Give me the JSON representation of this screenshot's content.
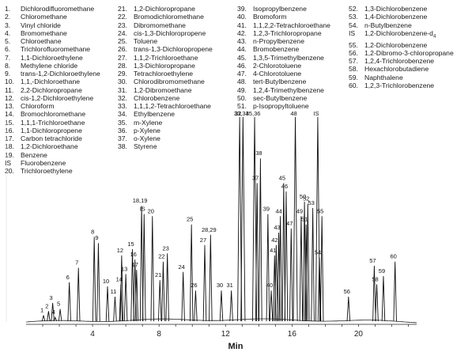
{
  "legend": {
    "columns": [
      [
        {
          "num": "1.",
          "name": "Dichlorodifluoromethane"
        },
        {
          "num": "2.",
          "name": "Chloromethane"
        },
        {
          "num": "3.",
          "name": "Vinyl chloride"
        },
        {
          "num": "4.",
          "name": "Bromomethane"
        },
        {
          "num": "5.",
          "name": "Chloroethane"
        },
        {
          "num": "6.",
          "name": "Trichlorofluoromethane"
        },
        {
          "num": "7.",
          "name": "1,1-Dichloroethylene"
        },
        {
          "num": "8.",
          "name": "Methylene chloride"
        },
        {
          "num": "9.",
          "name": "trans-1,2-Dichloroethylene"
        },
        {
          "num": "10.",
          "name": "1,1,-Dichloroethane"
        },
        {
          "num": "11.",
          "name": "2,2-Dichloropropane"
        },
        {
          "num": "12.",
          "name": "cis-1,2-Dichloroethylene"
        },
        {
          "num": "13.",
          "name": "Chloroform"
        },
        {
          "num": "14.",
          "name": "Bromochloromethane"
        },
        {
          "num": "15.",
          "name": "1,1,1-Trichloroethane"
        },
        {
          "num": "16.",
          "name": "1,1-Dichloropropene"
        },
        {
          "num": "17.",
          "name": "Carbon tetrachloride"
        },
        {
          "num": "18.",
          "name": "1,2-Dichloroethane"
        },
        {
          "num": "19.",
          "name": "Benzene"
        },
        {
          "num": "IS",
          "name": "Fluorobenzene"
        },
        {
          "num": "20.",
          "name": "Trichloroethylene"
        }
      ],
      [
        {
          "num": "21.",
          "name": "1,2-Dichloropropane"
        },
        {
          "num": "22.",
          "name": "Bromodichloromethane"
        },
        {
          "num": "23.",
          "name": "Dibromomethane"
        },
        {
          "num": "24.",
          "name": "cis-1,3-Dichloropropene"
        },
        {
          "num": "25.",
          "name": "Toluene"
        },
        {
          "num": "26.",
          "name": "trans-1,3-Dichloropropene"
        },
        {
          "num": "27.",
          "name": "1,1,2-Trichloroethane"
        },
        {
          "num": "28.",
          "name": "1,3-Dichloropropane"
        },
        {
          "num": "29.",
          "name": "Tetrachloroethylene"
        },
        {
          "num": "30.",
          "name": "Chlorodibromomethane"
        },
        {
          "num": "31.",
          "name": "1,2-Dibromoethane"
        },
        {
          "num": "32.",
          "name": "Chlorobenzene"
        },
        {
          "num": "33.",
          "name": "1,1,1,2-Tetrachloroethane"
        },
        {
          "num": "34.",
          "name": "Ethylbenzene"
        },
        {
          "num": "35.",
          "name": "m-Xylene"
        },
        {
          "num": "36.",
          "name": "p-Xylene"
        },
        {
          "num": "37.",
          "name": "o-Xylene"
        },
        {
          "num": "38.",
          "name": "Styrene"
        }
      ],
      [
        {
          "num": "39.",
          "name": "Isopropylbenzene"
        },
        {
          "num": "40.",
          "name": "Bromoform"
        },
        {
          "num": "41.",
          "name": "1,1,2,2-Tetrachloroethane"
        },
        {
          "num": "42.",
          "name": "1,2,3-Trichloropropane"
        },
        {
          "num": "43.",
          "name": "n-Propylbenzene"
        },
        {
          "num": "44.",
          "name": "Bromobenzene"
        },
        {
          "num": "45.",
          "name": "1,3,5-Trimethylbenzene"
        },
        {
          "num": "46.",
          "name": "2-Chlorotoluene"
        },
        {
          "num": "47.",
          "name": "4-Chlorotoluene"
        },
        {
          "num": "48.",
          "name": "tert-Butylbenzene"
        },
        {
          "num": "49.",
          "name": "1,2,4-Trimethylbenzene"
        },
        {
          "num": "50.",
          "name": "sec-Butylbenzene"
        },
        {
          "num": "51.",
          "name": "p-Isopropyltoluene"
        }
      ],
      [
        {
          "num": "52.",
          "name": "1,3-Dichlorobenzene"
        },
        {
          "num": "53.",
          "name": "1,4-Dichlorobenzene"
        },
        {
          "num": "54.",
          "name": "n-Butylbenzene"
        },
        {
          "num": "IS",
          "name": "1,2-Dichlorobenzene-d",
          "sub": "4"
        },
        {
          "num": "55.",
          "name": "1,2-Dichlorobenzene"
        },
        {
          "num": "56.",
          "name": "1,2-Dibromo-3-chloropropane"
        },
        {
          "num": "57.",
          "name": "1,2,4-Trichlorobenzene"
        },
        {
          "num": "58.",
          "name": "Hexachlorobutadiene"
        },
        {
          "num": "59.",
          "name": "Naphthalene"
        },
        {
          "num": "60.",
          "name": "1,2,3-Trichlorobenzene"
        }
      ]
    ]
  },
  "chart_data": {
    "type": "line",
    "xlabel": "Min",
    "ylabel": "",
    "xlim": [
      0,
      23.5
    ],
    "x_ticks": [
      4,
      8,
      12,
      16,
      20
    ],
    "grid": false,
    "peaks": [
      {
        "label": "1",
        "rt": 1.05,
        "height": 4
      },
      {
        "label": "2",
        "rt": 1.35,
        "height": 6
      },
      {
        "label": "3",
        "rt": 1.6,
        "height": 10
      },
      {
        "label": "4",
        "rt": 1.75,
        "height": 3
      },
      {
        "label": "5",
        "rt": 2.05,
        "height": 7
      },
      {
        "label": "6",
        "rt": 2.6,
        "height": 20
      },
      {
        "label": "7",
        "rt": 3.15,
        "height": 27
      },
      {
        "label": "8",
        "rt": 4.1,
        "height": 42
      },
      {
        "label": "9",
        "rt": 4.35,
        "height": 39
      },
      {
        "label": "10",
        "rt": 4.9,
        "height": 18
      },
      {
        "label": "11",
        "rt": 5.35,
        "height": 13
      },
      {
        "label": "12",
        "rt": 5.75,
        "height": 33
      },
      {
        "label": "13",
        "rt": 6.0,
        "height": 24
      },
      {
        "label": "14",
        "rt": 5.7,
        "height": 19
      },
      {
        "label": "15",
        "rt": 6.4,
        "height": 36
      },
      {
        "label": "16",
        "rt": 6.55,
        "height": 31
      },
      {
        "label": "17",
        "rt": 6.65,
        "height": 26
      },
      {
        "label": "18,19",
        "rt": 6.95,
        "height": 57
      },
      {
        "label": "IS",
        "rt": 7.1,
        "height": 53
      },
      {
        "label": "20",
        "rt": 7.6,
        "height": 52
      },
      {
        "label": "21",
        "rt": 8.05,
        "height": 21
      },
      {
        "label": "22",
        "rt": 8.25,
        "height": 30
      },
      {
        "label": "23",
        "rt": 8.5,
        "height": 34
      },
      {
        "label": "24",
        "rt": 9.45,
        "height": 25
      },
      {
        "label": "25",
        "rt": 9.95,
        "height": 48
      },
      {
        "label": "26",
        "rt": 10.2,
        "height": 16
      },
      {
        "label": "27",
        "rt": 10.75,
        "height": 38
      },
      {
        "label": "28,29",
        "rt": 11.1,
        "height": 43
      },
      {
        "label": "30",
        "rt": 11.75,
        "height": 16
      },
      {
        "label": "31",
        "rt": 12.35,
        "height": 16
      },
      {
        "label": "32",
        "rt": 12.85,
        "height": 100
      },
      {
        "label": "33,34",
        "rt": 13.05,
        "height": 100
      },
      {
        "label": "35,36",
        "rt": 13.75,
        "height": 100
      },
      {
        "label": "37",
        "rt": 13.9,
        "height": 68
      },
      {
        "label": "38",
        "rt": 14.1,
        "height": 80
      },
      {
        "label": "39",
        "rt": 14.55,
        "height": 53
      },
      {
        "label": "40",
        "rt": 14.75,
        "height": 16
      },
      {
        "label": "41",
        "rt": 14.95,
        "height": 33
      },
      {
        "label": "42",
        "rt": 15.05,
        "height": 38
      },
      {
        "label": "43",
        "rt": 15.2,
        "height": 44
      },
      {
        "label": "44",
        "rt": 15.3,
        "height": 52
      },
      {
        "label": "45",
        "rt": 15.5,
        "height": 68
      },
      {
        "label": "46",
        "rt": 15.65,
        "height": 64
      },
      {
        "label": "47",
        "rt": 15.95,
        "height": 46
      },
      {
        "label": "48",
        "rt": 16.2,
        "height": 100
      },
      {
        "label": "49",
        "rt": 16.55,
        "height": 52
      },
      {
        "label": "50",
        "rt": 16.75,
        "height": 59
      },
      {
        "label": "51",
        "rt": 16.85,
        "height": 48
      },
      {
        "label": "52",
        "rt": 16.95,
        "height": 58
      },
      {
        "label": "53",
        "rt": 17.25,
        "height": 56
      },
      {
        "label": "IS",
        "rt": 17.55,
        "height": 100
      },
      {
        "label": "54",
        "rt": 17.65,
        "height": 32
      },
      {
        "label": "55",
        "rt": 17.8,
        "height": 52
      },
      {
        "label": "56",
        "rt": 19.4,
        "height": 13
      },
      {
        "label": "57",
        "rt": 20.95,
        "height": 28
      },
      {
        "label": "58",
        "rt": 21.1,
        "height": 19
      },
      {
        "label": "59",
        "rt": 21.5,
        "height": 23
      },
      {
        "label": "60",
        "rt": 22.2,
        "height": 30
      }
    ]
  }
}
